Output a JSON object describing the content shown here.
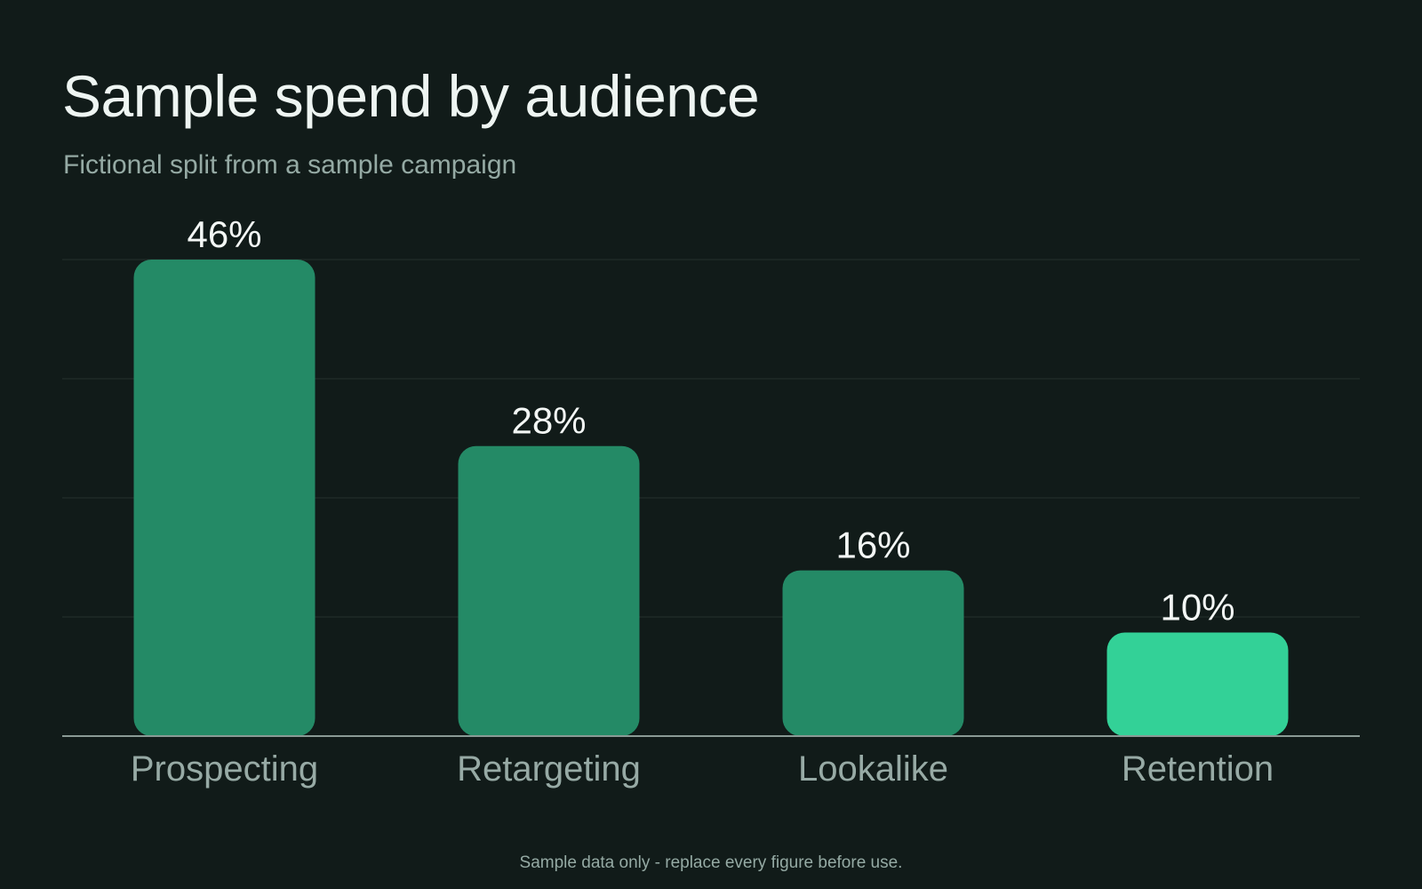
{
  "colors": {
    "background": "#111b19",
    "bar": "#248a66",
    "bar_highlight": "#33d197",
    "gridline": "#25302d",
    "baseline": "#8a9a95",
    "value_label": "#f3f7f5",
    "category_label": "#97aaa5"
  },
  "chart_data": {
    "type": "bar",
    "title": "Sample spend by audience",
    "subtitle": "Fictional split from a sample campaign",
    "categories": [
      "Prospecting",
      "Retargeting",
      "Lookalike",
      "Retention"
    ],
    "values": [
      46,
      28,
      16,
      10
    ],
    "value_labels": [
      "46%",
      "28%",
      "16%",
      "10%"
    ],
    "unit": "%",
    "ylim": [
      0,
      46
    ],
    "grid": true,
    "highlighted_category": "Retention",
    "footnote": "Sample data only - replace every figure before use."
  }
}
